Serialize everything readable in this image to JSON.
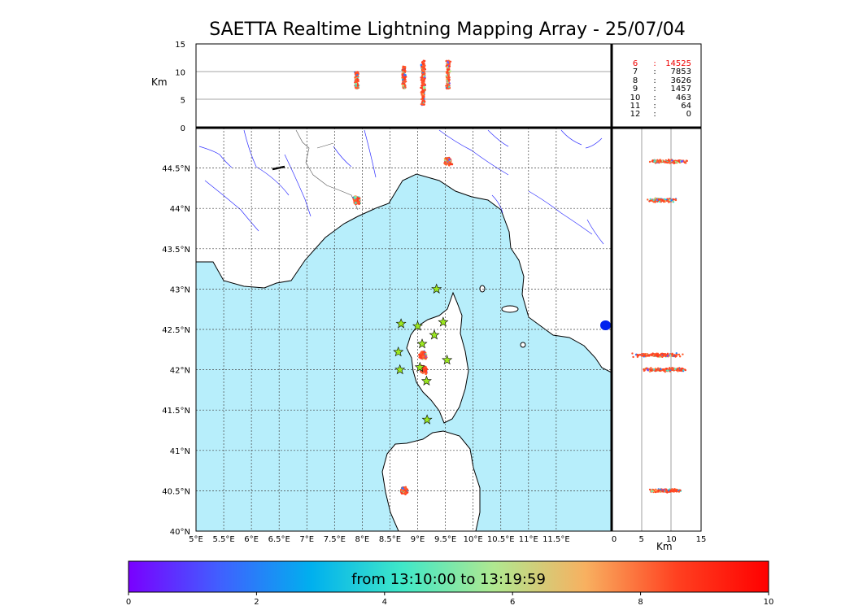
{
  "chart_data": {
    "type": "scatter",
    "title": "SAETTA Realtime Lightning Mapping Array - 25/07/04",
    "panels": {
      "map": {
        "xlim": [
          5,
          12.5
        ],
        "ylim": [
          40,
          45
        ],
        "x_ticks": [
          "5°E",
          "5.5°E",
          "6°E",
          "6.5°E",
          "7°E",
          "7.5°E",
          "8°E",
          "8.5°E",
          "9°E",
          "9.5°E",
          "10°E",
          "10.5°E",
          "11°E",
          "11.5°E"
        ],
        "y_ticks": [
          "40°N",
          "40.5°N",
          "41°N",
          "41.5°N",
          "42°N",
          "42.5°N",
          "43°N",
          "43.5°N",
          "44°N",
          "44.5°N"
        ]
      },
      "altitude_vs_lon": {
        "ylabel": "Km",
        "ylim": [
          0,
          15
        ],
        "y_ticks": [
          "0",
          "5",
          "10",
          "15"
        ]
      },
      "lat_vs_altitude": {
        "xlabel": "Km",
        "xlim": [
          0,
          15
        ],
        "x_ticks": [
          "0",
          "5",
          "10",
          "15"
        ]
      }
    },
    "clusters": [
      {
        "lon": 7.9,
        "lat": 44.1,
        "alt": [
          7,
          10
        ]
      },
      {
        "lon": 8.75,
        "lat": 40.5,
        "alt": [
          7,
          11
        ]
      },
      {
        "lon": 9.1,
        "lat": 42.0,
        "alt": [
          6,
          12
        ]
      },
      {
        "lon": 9.1,
        "lat": 42.18,
        "alt": [
          4,
          11
        ]
      },
      {
        "lon": 9.55,
        "lat": 44.58,
        "alt": [
          7,
          12
        ]
      }
    ],
    "stations": [
      {
        "lon": 9.34,
        "lat": 43.0
      },
      {
        "lon": 8.7,
        "lat": 42.57
      },
      {
        "lon": 9.0,
        "lat": 42.54
      },
      {
        "lon": 9.46,
        "lat": 42.59
      },
      {
        "lon": 9.3,
        "lat": 42.43
      },
      {
        "lon": 9.08,
        "lat": 42.32
      },
      {
        "lon": 8.65,
        "lat": 42.22
      },
      {
        "lon": 9.53,
        "lat": 42.12
      },
      {
        "lon": 8.68,
        "lat": 42.0
      },
      {
        "lon": 9.04,
        "lat": 42.03
      },
      {
        "lon": 9.16,
        "lat": 41.86
      },
      {
        "lon": 9.17,
        "lat": 41.38
      }
    ],
    "station_counts": [
      {
        "stations": "6",
        "count": "14525",
        "highlight": true
      },
      {
        "stations": "7",
        "count": "7853"
      },
      {
        "stations": "8",
        "count": "3626"
      },
      {
        "stations": "9",
        "count": "1457"
      },
      {
        "stations": "10",
        "count": "463"
      },
      {
        "stations": "11",
        "count": "64"
      },
      {
        "stations": "12",
        "count": "0"
      }
    ],
    "colorbar": {
      "caption": "from 13:10:00 to 13:19:59",
      "ticks": [
        "0",
        "2",
        "4",
        "6",
        "8",
        "10"
      ],
      "range": [
        0,
        10
      ],
      "colors": [
        "#7a00ff",
        "#4060ff",
        "#00b0ee",
        "#40e8c8",
        "#b0e890",
        "#f8b060",
        "#ff4020",
        "#ff0000"
      ]
    },
    "grid": true,
    "sea_color": "#b7eefb"
  }
}
